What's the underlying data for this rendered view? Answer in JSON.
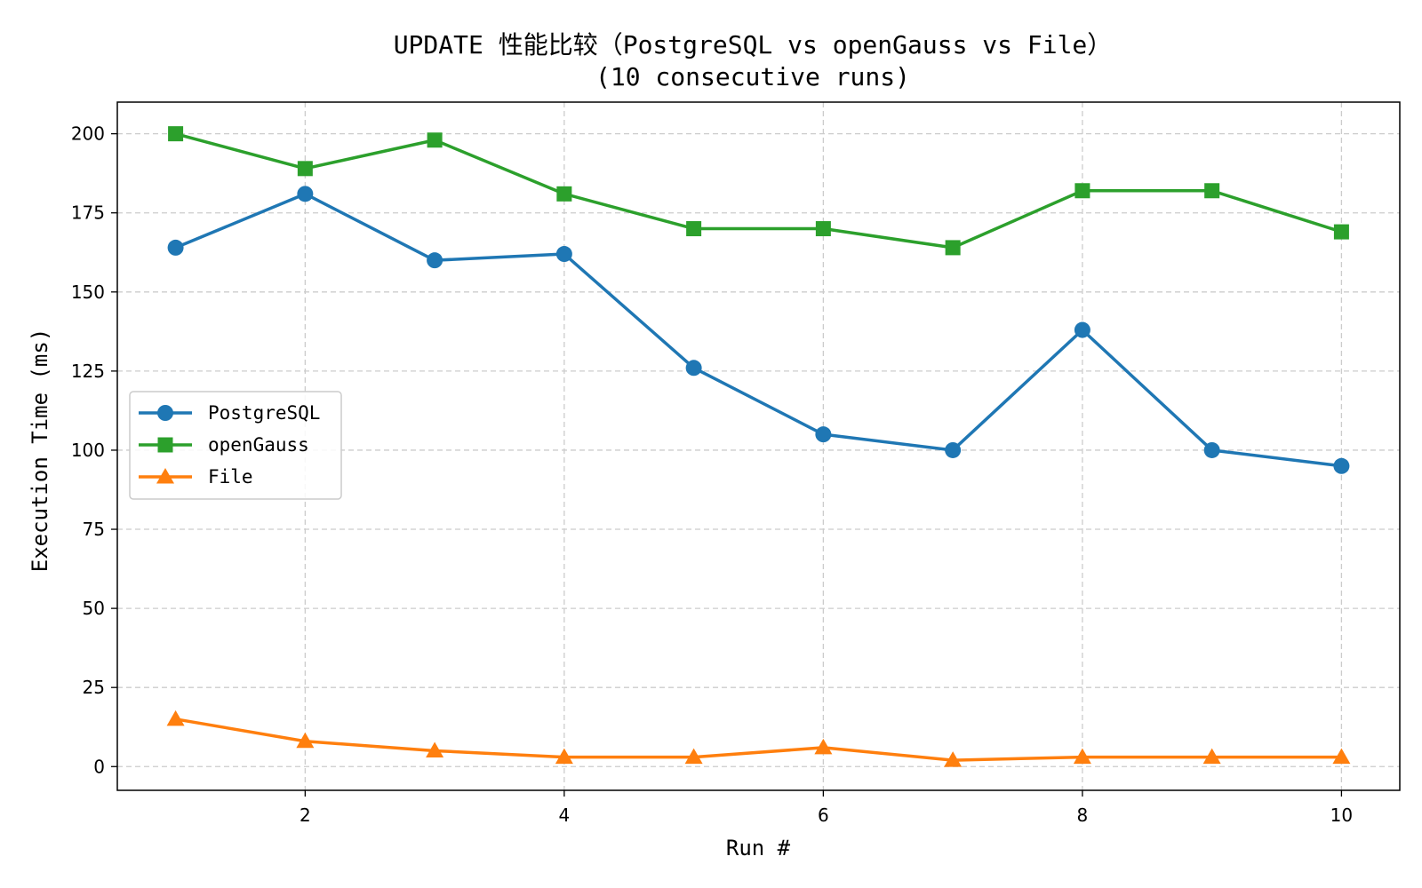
{
  "chart_data": {
    "type": "line",
    "title": "UPDATE 性能比较（PostgreSQL vs openGauss vs File）",
    "subtitle": "(10 consecutive runs)",
    "xlabel": "Run #",
    "ylabel": "Execution Time (ms)",
    "xlim": [
      0.55,
      10.45
    ],
    "ylim": [
      -7.5,
      210
    ],
    "x_ticks": [
      2,
      4,
      6,
      8,
      10
    ],
    "y_ticks": [
      0,
      25,
      50,
      75,
      100,
      125,
      150,
      175,
      200
    ],
    "grid": true,
    "legend_position": "center-left",
    "x": [
      1,
      2,
      3,
      4,
      5,
      6,
      7,
      8,
      9,
      10
    ],
    "series": [
      {
        "name": "PostgreSQL",
        "color": "#1f77b4",
        "marker": "circle",
        "values": [
          164,
          181,
          160,
          162,
          126,
          105,
          100,
          138,
          100,
          95
        ]
      },
      {
        "name": "openGauss",
        "color": "#2ca02c",
        "marker": "square",
        "values": [
          200,
          189,
          198,
          181,
          170,
          170,
          164,
          182,
          182,
          169
        ]
      },
      {
        "name": "File",
        "color": "#ff7f0e",
        "marker": "triangle",
        "values": [
          15,
          8,
          5,
          3,
          3,
          6,
          2,
          3,
          3,
          3
        ]
      }
    ]
  }
}
